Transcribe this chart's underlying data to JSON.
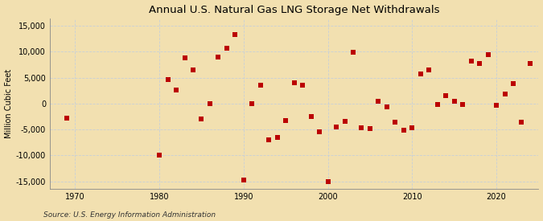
{
  "title": "Annual U.S. Natural Gas LNG Storage Net Withdrawals",
  "ylabel": "Million Cubic Feet",
  "source": "Source: U.S. Energy Information Administration",
  "xlim": [
    1967,
    2025
  ],
  "ylim": [
    -16500,
    16500
  ],
  "yticks": [
    -15000,
    -10000,
    -5000,
    0,
    5000,
    10000,
    15000
  ],
  "xticks": [
    1970,
    1980,
    1990,
    2000,
    2010,
    2020
  ],
  "background_color": "#f2e0b0",
  "plot_bg_color": "#f2e0b0",
  "marker_color": "#bb0000",
  "marker_size": 18,
  "years": [
    1969,
    1980,
    1981,
    1982,
    1983,
    1984,
    1985,
    1986,
    1987,
    1988,
    1989,
    1990,
    1991,
    1992,
    1993,
    1994,
    1995,
    1996,
    1997,
    1998,
    1999,
    2000,
    2001,
    2002,
    2003,
    2004,
    2005,
    2006,
    2007,
    2008,
    2009,
    2010,
    2011,
    2012,
    2013,
    2014,
    2015,
    2016,
    2017,
    2018,
    2019,
    2020,
    2021,
    2022,
    2023,
    2024
  ],
  "values": [
    -2800,
    -10000,
    4700,
    2700,
    8800,
    6500,
    -3000,
    0,
    9000,
    10700,
    13300,
    -14800,
    0,
    3600,
    -7000,
    -6500,
    -3300,
    4000,
    3600,
    -2500,
    -5500,
    -15000,
    -4500,
    -3500,
    9900,
    -4600,
    -4800,
    400,
    -600,
    -3600,
    -5100,
    -4700,
    5800,
    6500,
    -100,
    1600,
    500,
    -200,
    8200,
    7700,
    9500,
    -400,
    1800,
    3900,
    -3600,
    7700
  ],
  "grid_color": "#c8d0d8",
  "spine_color": "#888888",
  "title_fontsize": 9.5,
  "tick_fontsize": 7,
  "ylabel_fontsize": 7,
  "source_fontsize": 6.5
}
